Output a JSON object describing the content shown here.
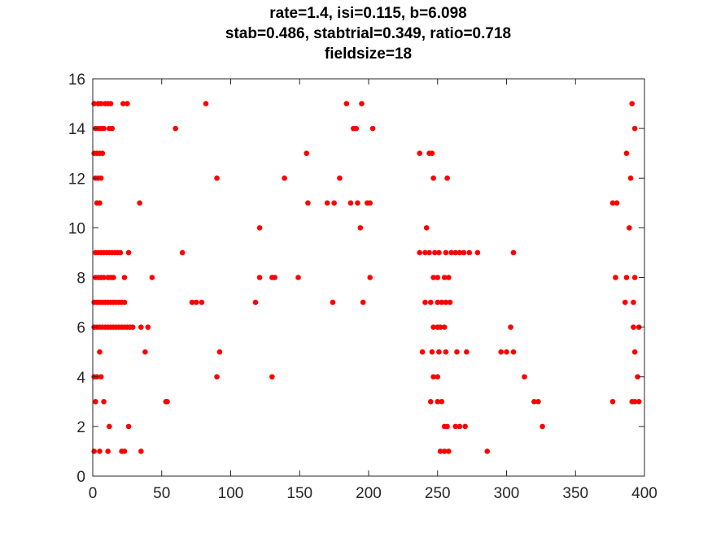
{
  "title_lines": [
    "rate=1.4, isi=0.115, b=6.098",
    "stab=0.486, stabtrial=0.349, ratio=0.718",
    "fieldsize=18"
  ],
  "chart_data": {
    "type": "scatter",
    "title": "rate=1.4, isi=0.115, b=6.098 / stab=0.486, stabtrial=0.349, ratio=0.718 / fieldsize=18",
    "xlabel": "",
    "ylabel": "",
    "xlim": [
      0,
      400
    ],
    "ylim": [
      0,
      16
    ],
    "x_ticks": [
      0,
      50,
      100,
      150,
      200,
      250,
      300,
      350,
      400
    ],
    "y_ticks": [
      0,
      2,
      4,
      6,
      8,
      10,
      12,
      14,
      16
    ],
    "grid": false,
    "marker_color": "#ff0000",
    "series": [
      {
        "points": [
          [
            82,
            15
          ],
          [
            184,
            15
          ],
          [
            195,
            15
          ],
          [
            391,
            15
          ],
          [
            60,
            14
          ],
          [
            189,
            14
          ],
          [
            191,
            14
          ],
          [
            203,
            14
          ],
          [
            393,
            14
          ],
          [
            155,
            13
          ],
          [
            237,
            13
          ],
          [
            244,
            13
          ],
          [
            246,
            13
          ],
          [
            387,
            13
          ],
          [
            90,
            12
          ],
          [
            139,
            12
          ],
          [
            179,
            12
          ],
          [
            247,
            12
          ],
          [
            257,
            12
          ],
          [
            390,
            12
          ],
          [
            34,
            11
          ],
          [
            156,
            11
          ],
          [
            170,
            11
          ],
          [
            175,
            11
          ],
          [
            187,
            11
          ],
          [
            192,
            11
          ],
          [
            199,
            11
          ],
          [
            201,
            11
          ],
          [
            377,
            11
          ],
          [
            380,
            11
          ],
          [
            121,
            10
          ],
          [
            194,
            10
          ],
          [
            242,
            10
          ],
          [
            389,
            10
          ],
          [
            65,
            9
          ],
          [
            237,
            9
          ],
          [
            241,
            9
          ],
          [
            244,
            9
          ],
          [
            248,
            9
          ],
          [
            251,
            9
          ],
          [
            256,
            9
          ],
          [
            260,
            9
          ],
          [
            263,
            9
          ],
          [
            266,
            9
          ],
          [
            269,
            9
          ],
          [
            273,
            9
          ],
          [
            279,
            9
          ],
          [
            305,
            9
          ],
          [
            43,
            8
          ],
          [
            121,
            8
          ],
          [
            130,
            8
          ],
          [
            132,
            8
          ],
          [
            149,
            8
          ],
          [
            201,
            8
          ],
          [
            247,
            8
          ],
          [
            250,
            8
          ],
          [
            255,
            8
          ],
          [
            258,
            8
          ],
          [
            379,
            8
          ],
          [
            387,
            8
          ],
          [
            393,
            8
          ],
          [
            118,
            7
          ],
          [
            72,
            7
          ],
          [
            75,
            7
          ],
          [
            79,
            7
          ],
          [
            174,
            7
          ],
          [
            196,
            7
          ],
          [
            241,
            7
          ],
          [
            245,
            7
          ],
          [
            250,
            7
          ],
          [
            253,
            7
          ],
          [
            256,
            7
          ],
          [
            259,
            7
          ],
          [
            386,
            7
          ],
          [
            392,
            7
          ],
          [
            35,
            6
          ],
          [
            40,
            6
          ],
          [
            247,
            6
          ],
          [
            250,
            6
          ],
          [
            252,
            6
          ],
          [
            255,
            6
          ],
          [
            303,
            6
          ],
          [
            392,
            6
          ],
          [
            396,
            6
          ],
          [
            38,
            5
          ],
          [
            92,
            5
          ],
          [
            239,
            5
          ],
          [
            246,
            5
          ],
          [
            251,
            5
          ],
          [
            256,
            5
          ],
          [
            264,
            5
          ],
          [
            271,
            5
          ],
          [
            296,
            5
          ],
          [
            300,
            5
          ],
          [
            305,
            5
          ],
          [
            393,
            5
          ],
          [
            90,
            4
          ],
          [
            130,
            4
          ],
          [
            247,
            4
          ],
          [
            250,
            4
          ],
          [
            313,
            4
          ],
          [
            395,
            4
          ],
          [
            53,
            3
          ],
          [
            54,
            3
          ],
          [
            245,
            3
          ],
          [
            250,
            3
          ],
          [
            253,
            3
          ],
          [
            320,
            3
          ],
          [
            323,
            3
          ],
          [
            377,
            3
          ],
          [
            391,
            3
          ],
          [
            393,
            3
          ],
          [
            396,
            3
          ],
          [
            255,
            2
          ],
          [
            257,
            2
          ],
          [
            263,
            2
          ],
          [
            266,
            2
          ],
          [
            270,
            2
          ],
          [
            326,
            2
          ],
          [
            21,
            1
          ],
          [
            23,
            1
          ],
          [
            35,
            1
          ],
          [
            252,
            1
          ],
          [
            255,
            1
          ],
          [
            258,
            1
          ],
          [
            286,
            1
          ],
          [
            1,
            15
          ],
          [
            4,
            15
          ],
          [
            6,
            15
          ],
          [
            9,
            15
          ],
          [
            11,
            15
          ],
          [
            13,
            15
          ],
          [
            22,
            15
          ],
          [
            25,
            15
          ],
          [
            2,
            14
          ],
          [
            4,
            14
          ],
          [
            6,
            14
          ],
          [
            8,
            14
          ],
          [
            12,
            14
          ],
          [
            14,
            14
          ],
          [
            1,
            13
          ],
          [
            3,
            13
          ],
          [
            5,
            13
          ],
          [
            7,
            13
          ],
          [
            2,
            12
          ],
          [
            4,
            12
          ],
          [
            6,
            12
          ],
          [
            3,
            11
          ],
          [
            5,
            11
          ],
          [
            2,
            9
          ],
          [
            4,
            9
          ],
          [
            6,
            9
          ],
          [
            8,
            9
          ],
          [
            10,
            9
          ],
          [
            12,
            9
          ],
          [
            14,
            9
          ],
          [
            16,
            9
          ],
          [
            18,
            9
          ],
          [
            20,
            9
          ],
          [
            26,
            9
          ],
          [
            2,
            8
          ],
          [
            4,
            8
          ],
          [
            6,
            8
          ],
          [
            8,
            8
          ],
          [
            11,
            8
          ],
          [
            13,
            8
          ],
          [
            15,
            8
          ],
          [
            23,
            8
          ],
          [
            1,
            7
          ],
          [
            3,
            7
          ],
          [
            5,
            7
          ],
          [
            7,
            7
          ],
          [
            9,
            7
          ],
          [
            11,
            7
          ],
          [
            13,
            7
          ],
          [
            15,
            7
          ],
          [
            17,
            7
          ],
          [
            19,
            7
          ],
          [
            21,
            7
          ],
          [
            23,
            7
          ],
          [
            1,
            6
          ],
          [
            3,
            6
          ],
          [
            5,
            6
          ],
          [
            7,
            6
          ],
          [
            9,
            6
          ],
          [
            11,
            6
          ],
          [
            13,
            6
          ],
          [
            15,
            6
          ],
          [
            17,
            6
          ],
          [
            19,
            6
          ],
          [
            21,
            6
          ],
          [
            23,
            6
          ],
          [
            25,
            6
          ],
          [
            27,
            6
          ],
          [
            29,
            6
          ],
          [
            5,
            5
          ],
          [
            1,
            4
          ],
          [
            3,
            4
          ],
          [
            6,
            4
          ],
          [
            2,
            3
          ],
          [
            8,
            3
          ],
          [
            12,
            2
          ],
          [
            26,
            2
          ],
          [
            1,
            1
          ],
          [
            5,
            1
          ],
          [
            11,
            1
          ]
        ]
      }
    ]
  }
}
